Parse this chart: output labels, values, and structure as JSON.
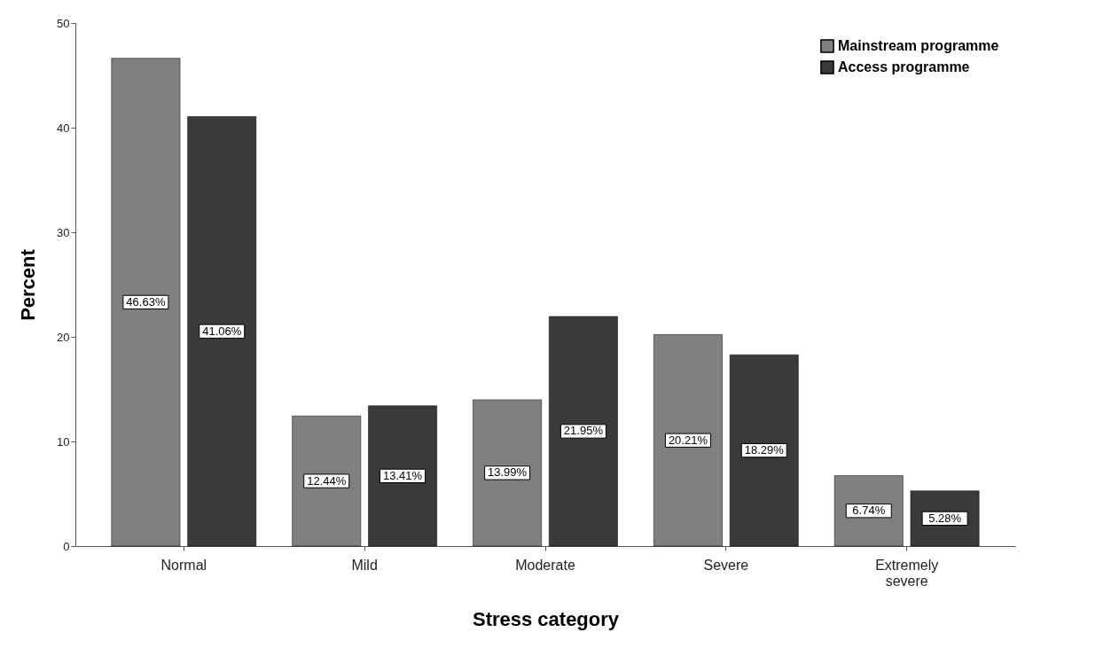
{
  "chart_data": {
    "type": "bar",
    "xlabel": "Stress category",
    "ylabel": "Percent",
    "categories": [
      "Normal",
      "Mild",
      "Moderate",
      "Severe",
      "Extremely severe"
    ],
    "series": [
      {
        "name": "Mainstream programme",
        "color": "#808080",
        "values": [
          46.63,
          12.44,
          13.99,
          20.21,
          6.74
        ],
        "value_labels": [
          "46.63%",
          "12.44%",
          "13.99%",
          "20.21%",
          "6.74%"
        ]
      },
      {
        "name": "Access programme",
        "color": "#3a3a3a",
        "values": [
          41.06,
          13.41,
          21.95,
          18.29,
          5.28
        ],
        "value_labels": [
          "41.06%",
          "13.41%",
          "21.95%",
          "18.29%",
          "5.28%"
        ]
      }
    ],
    "ylim": [
      0,
      50
    ],
    "yticks": [
      0,
      10,
      20,
      30,
      40,
      50
    ],
    "grid": false,
    "legend": "top right"
  }
}
